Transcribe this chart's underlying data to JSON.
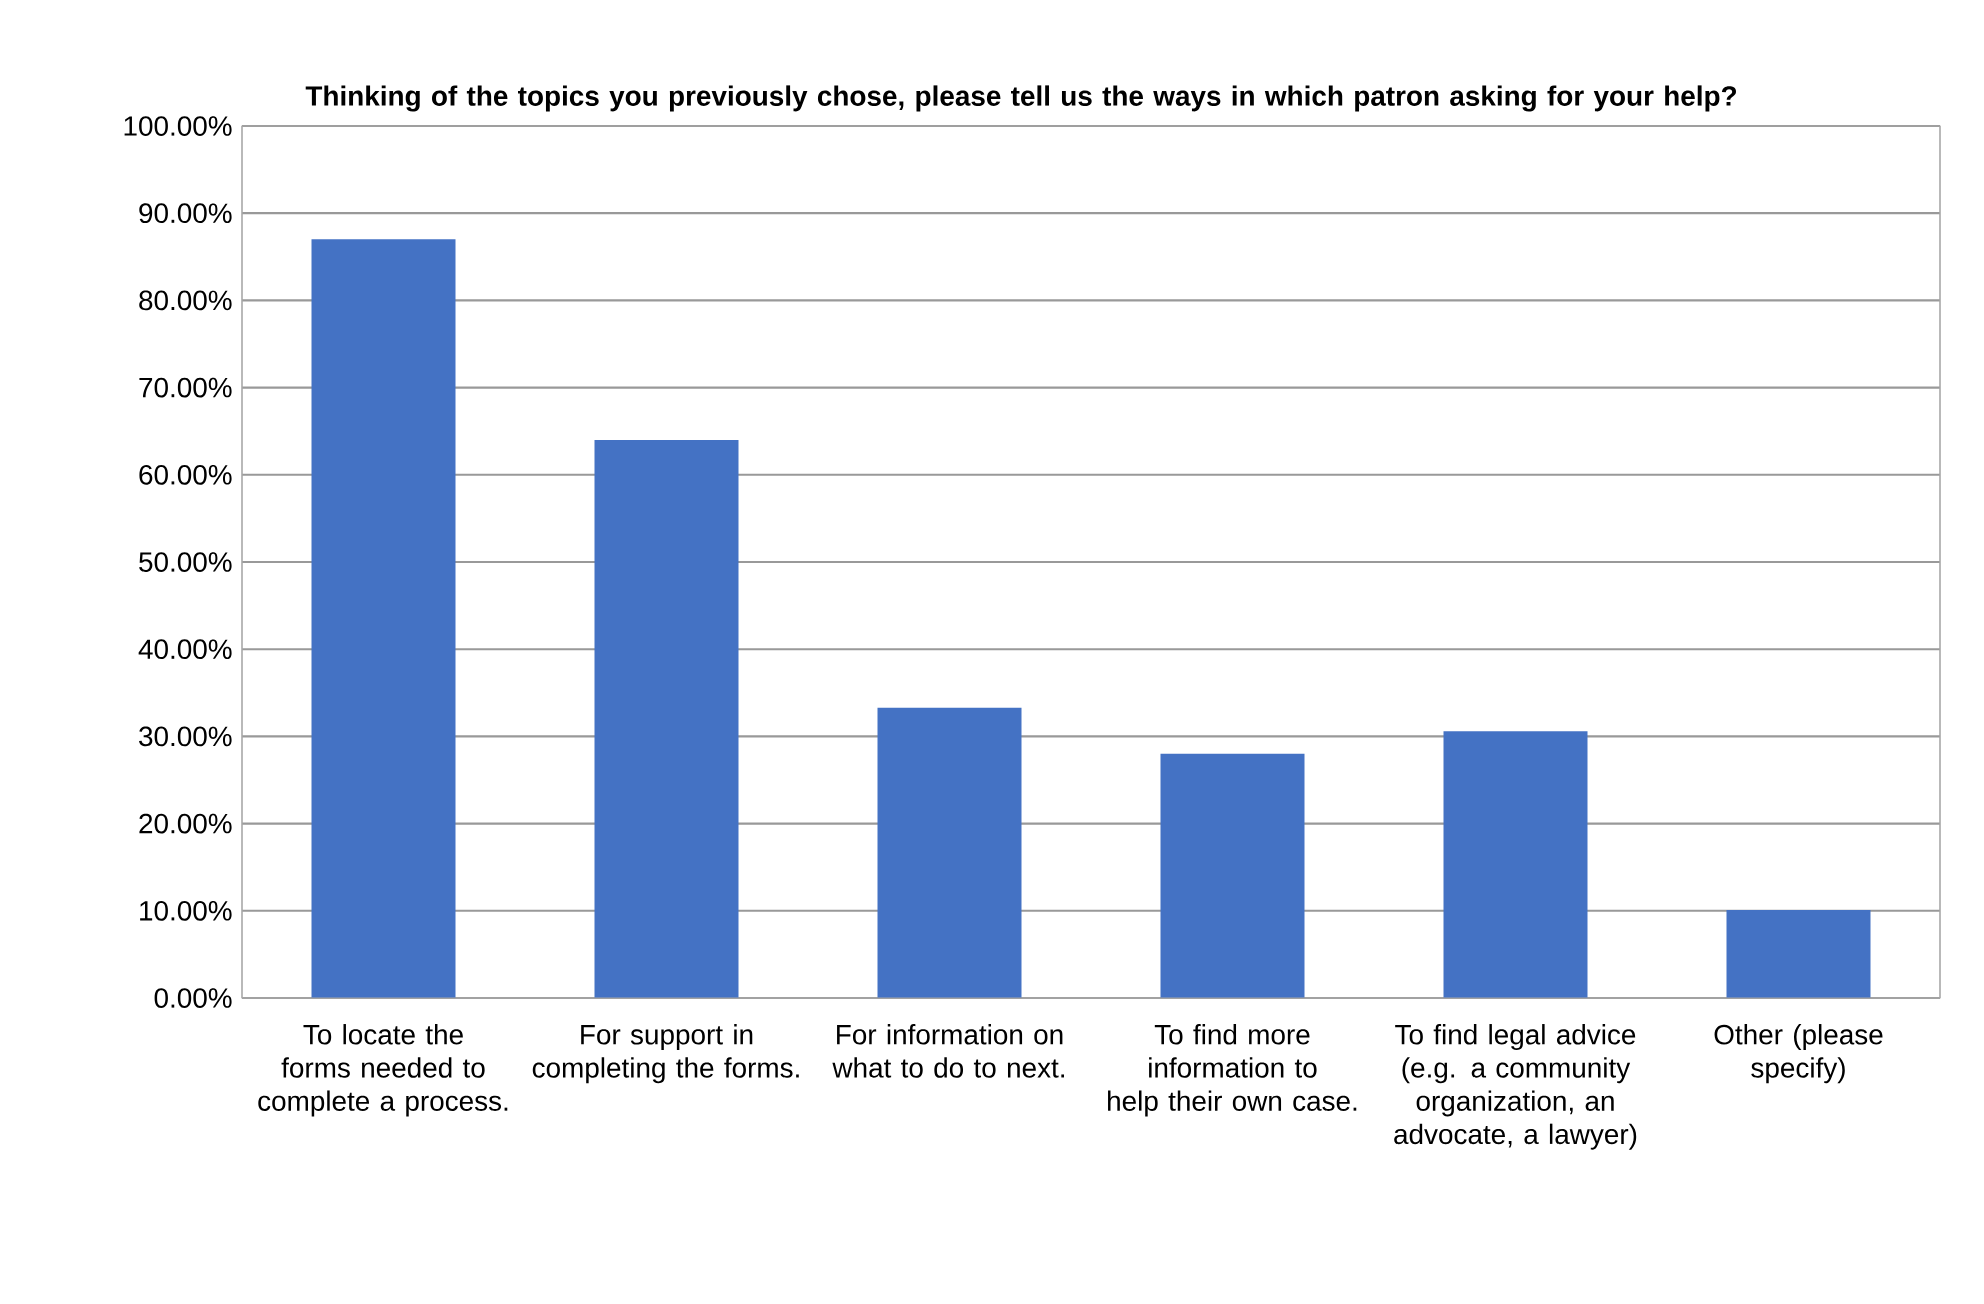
{
  "chart_data": {
    "type": "bar",
    "title": "Thinking of the topics you previously chose, please tell us the ways in which patron asking for your help?",
    "categories": [
      "To locate the forms needed to complete a process.",
      "For support in completing the forms.",
      "For information on what to do to next.",
      "To find more information to help their own case.",
      "To find legal advice (e.g. a community organization, an advocate, a lawyer)",
      "Other (please specify)"
    ],
    "values": [
      87,
      64,
      33.3,
      28,
      30.6,
      10.1
    ],
    "color": "#4472c4",
    "ylim": [
      0,
      100
    ],
    "yticks": [
      {
        "value": 0,
        "label": "0.00%"
      },
      {
        "value": 10,
        "label": "10.00%"
      },
      {
        "value": 20,
        "label": "20.00%"
      },
      {
        "value": 30,
        "label": "30.00%"
      },
      {
        "value": 40,
        "label": "40.00%"
      },
      {
        "value": 50,
        "label": "50.00%"
      },
      {
        "value": 60,
        "label": "60.00%"
      },
      {
        "value": 70,
        "label": "70.00%"
      },
      {
        "value": 80,
        "label": "80.00%"
      },
      {
        "value": 90,
        "label": "90.00%"
      },
      {
        "value": 100,
        "label": "100.00%"
      }
    ],
    "grid": "y"
  }
}
